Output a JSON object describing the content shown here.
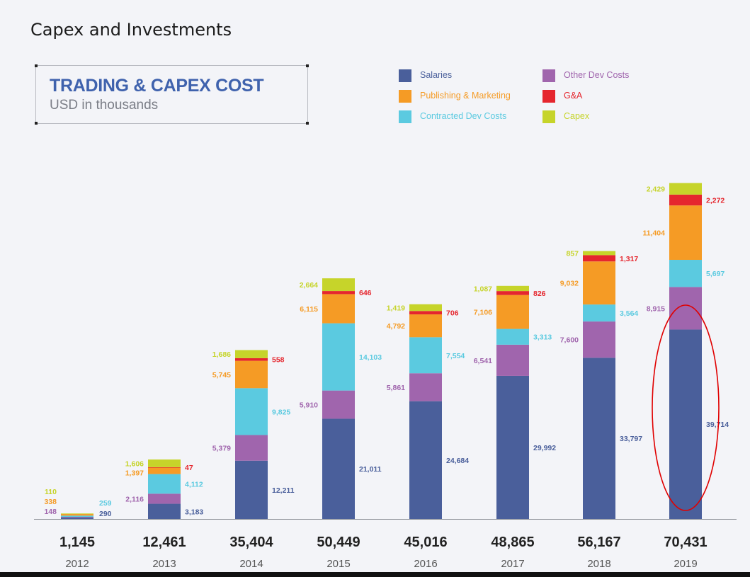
{
  "page": {
    "heading": "Capex and Investments"
  },
  "title_box": {
    "title": "TRADING & CAPEX COST",
    "subtitle": "USD in thousands"
  },
  "colors": {
    "salaries": "#4a5f9b",
    "other_dev_costs": "#a065ad",
    "contracted_dev_costs": "#5bcae0",
    "publishing_marketing": "#f59b25",
    "ga": "#e5262e",
    "capex": "#c6d42a",
    "total_text": "#222222",
    "year_text": "#555555",
    "highlight": "#e00000"
  },
  "chart_data": {
    "type": "bar",
    "stacked": true,
    "title": "TRADING & CAPEX COST",
    "subtitle": "USD in thousands",
    "categories": [
      "2012",
      "2013",
      "2014",
      "2015",
      "2016",
      "2017",
      "2018",
      "2019"
    ],
    "totals": [
      "1,145",
      "12,461",
      "35,404",
      "50,449",
      "45,016",
      "48,865",
      "56,167",
      "70,431"
    ],
    "series": [
      {
        "key": "salaries",
        "name": "Salaries",
        "values": [
          290,
          3183,
          12211,
          21011,
          24684,
          29992,
          33797,
          39714
        ],
        "labels": [
          "290",
          "3,183",
          "12,211",
          "21,011",
          "24,684",
          "29,992",
          "33,797",
          "39,714"
        ]
      },
      {
        "key": "other_dev_costs",
        "name": "Other Dev Costs",
        "values": [
          148,
          2116,
          5379,
          5910,
          5861,
          6541,
          7600,
          8915
        ],
        "labels": [
          "148",
          "2,116",
          "5,379",
          "5,910",
          "5,861",
          "6,541",
          "7,600",
          "8,915"
        ]
      },
      {
        "key": "contracted_dev_costs",
        "name": "Contracted Dev Costs",
        "values": [
          259,
          4112,
          9825,
          14103,
          7554,
          3313,
          3564,
          5697
        ],
        "labels": [
          "259",
          "4,112",
          "9,825",
          "14,103",
          "7,554",
          "3,313",
          "3,564",
          "5,697"
        ]
      },
      {
        "key": "publishing_marketing",
        "name": "Publishing & Marketing",
        "values": [
          338,
          1397,
          5745,
          6115,
          4792,
          7106,
          9032,
          11404
        ],
        "labels": [
          "338",
          "1,397",
          "5,745",
          "6,115",
          "4,792",
          "7,106",
          "9,032",
          "11,404"
        ]
      },
      {
        "key": "ga",
        "name": "G&A",
        "values": [
          0,
          47,
          558,
          646,
          706,
          826,
          1317,
          2272
        ],
        "labels": [
          "",
          "47",
          "558",
          "646",
          "706",
          "826",
          "1,317",
          "2,272"
        ]
      },
      {
        "key": "capex",
        "name": "Capex",
        "values": [
          110,
          1606,
          1686,
          2664,
          1419,
          1087,
          857,
          2429
        ],
        "labels": [
          "110",
          "1,606",
          "1,686",
          "2,664",
          "1,419",
          "1,087",
          "857",
          "2,429"
        ]
      }
    ],
    "legend_order": [
      "salaries",
      "publishing_marketing",
      "contracted_dev_costs",
      "other_dev_costs",
      "ga",
      "capex"
    ],
    "highlight": {
      "category": "2019",
      "shape": "ellipse",
      "around": "salaries"
    }
  }
}
